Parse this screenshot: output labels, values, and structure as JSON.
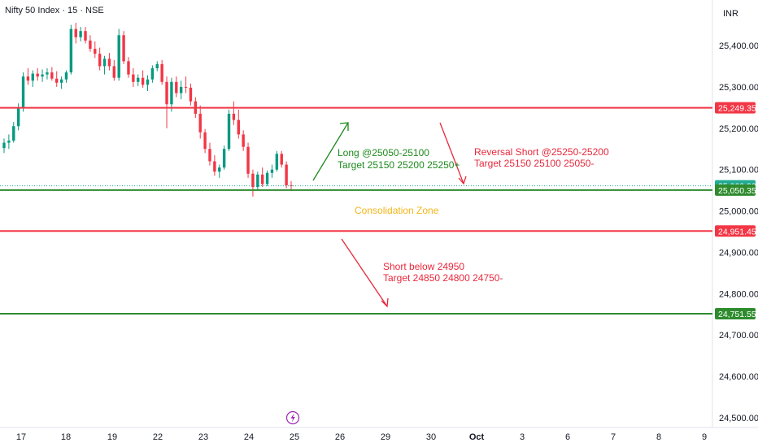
{
  "header": {
    "symbol_title": "Nifty 50 Index · 15 · NSE",
    "currency": "INR"
  },
  "chart_data": {
    "type": "candlestick",
    "title": "Nifty 50 Index · 15 · NSE",
    "ylim": [
      24480,
      25480
    ],
    "y_ticks": [
      {
        "value": 25400,
        "label": "25,400.00"
      },
      {
        "value": 25300,
        "label": "25,300.00"
      },
      {
        "value": 25200,
        "label": "25,200.00"
      },
      {
        "value": 25100,
        "label": "25,100.00"
      },
      {
        "value": 25000,
        "label": "25,000.00"
      },
      {
        "value": 24900,
        "label": "24,900.00"
      },
      {
        "value": 24800,
        "label": "24,800.00"
      },
      {
        "value": 24700,
        "label": "24,700.00"
      },
      {
        "value": 24600,
        "label": "24,600.00"
      },
      {
        "value": 24500,
        "label": "24,500.00"
      }
    ],
    "x_ticks": [
      "17",
      "18",
      "19",
      "22",
      "23",
      "24",
      "25",
      "26",
      "29",
      "30",
      "Oct",
      "3",
      "6",
      "7",
      "8",
      "9"
    ],
    "candles": [
      [
        25152,
        25175,
        25140,
        25165
      ],
      [
        25165,
        25185,
        25150,
        25170
      ],
      [
        25170,
        25215,
        25165,
        25205
      ],
      [
        25205,
        25260,
        25195,
        25248
      ],
      [
        25248,
        25335,
        25240,
        25325
      ],
      [
        25325,
        25345,
        25305,
        25315
      ],
      [
        25315,
        25340,
        25300,
        25332
      ],
      [
        25332,
        25345,
        25315,
        25325
      ],
      [
        25325,
        25342,
        25312,
        25330
      ],
      [
        25330,
        25345,
        25318,
        25335
      ],
      [
        25335,
        25348,
        25315,
        25320
      ],
      [
        25320,
        25338,
        25300,
        25310
      ],
      [
        25310,
        25325,
        25295,
        25318
      ],
      [
        25318,
        25340,
        25310,
        25335
      ],
      [
        25335,
        25450,
        25330,
        25440
      ],
      [
        25440,
        25455,
        25405,
        25420
      ],
      [
        25420,
        25445,
        25410,
        25435
      ],
      [
        25435,
        25445,
        25405,
        25412
      ],
      [
        25412,
        25425,
        25385,
        25392
      ],
      [
        25392,
        25410,
        25370,
        25380
      ],
      [
        25380,
        25395,
        25340,
        25350
      ],
      [
        25350,
        25375,
        25330,
        25368
      ],
      [
        25368,
        25382,
        25340,
        25350
      ],
      [
        25350,
        25365,
        25315,
        25322
      ],
      [
        25322,
        25440,
        25315,
        25425
      ],
      [
        25425,
        25435,
        25355,
        25362
      ],
      [
        25362,
        25372,
        25322,
        25330
      ],
      [
        25330,
        25345,
        25300,
        25312
      ],
      [
        25312,
        25330,
        25302,
        25322
      ],
      [
        25322,
        25340,
        25298,
        25305
      ],
      [
        25305,
        25328,
        25290,
        25318
      ],
      [
        25318,
        25352,
        25310,
        25345
      ],
      [
        25345,
        25362,
        25338,
        25355
      ],
      [
        25355,
        25365,
        25305,
        25312
      ],
      [
        25312,
        25325,
        25200,
        25258
      ],
      [
        25258,
        25322,
        25240,
        25312
      ],
      [
        25312,
        25325,
        25275,
        25285
      ],
      [
        25285,
        25315,
        25270,
        25300
      ],
      [
        25300,
        25325,
        25285,
        25298
      ],
      [
        25298,
        25308,
        25255,
        25265
      ],
      [
        25265,
        25275,
        25225,
        25235
      ],
      [
        25235,
        25255,
        25175,
        25190
      ],
      [
        25190,
        25198,
        25140,
        25150
      ],
      [
        25150,
        25165,
        25110,
        25120
      ],
      [
        25120,
        25135,
        25085,
        25095
      ],
      [
        25095,
        25112,
        25080,
        25105
      ],
      [
        25105,
        25158,
        25100,
        25150
      ],
      [
        25150,
        25245,
        25145,
        25235
      ],
      [
        25235,
        25265,
        25208,
        25220
      ],
      [
        25220,
        25245,
        25175,
        25185
      ],
      [
        25185,
        25195,
        25145,
        25155
      ],
      [
        25155,
        25165,
        25080,
        25090
      ],
      [
        25090,
        25100,
        25035,
        25058
      ],
      [
        25058,
        25095,
        25050,
        25088
      ],
      [
        25088,
        25105,
        25058,
        25065
      ],
      [
        25065,
        25098,
        25060,
        25092
      ],
      [
        25092,
        25112,
        25080,
        25100
      ],
      [
        25100,
        25145,
        25095,
        25138
      ],
      [
        25138,
        25145,
        25105,
        25112
      ],
      [
        25112,
        25120,
        25055,
        25062
      ],
      [
        25062,
        25072,
        25048,
        25060
      ]
    ],
    "levels": [
      {
        "value": 25249.35,
        "label": "25,249.35",
        "color": "#f23645"
      },
      {
        "value": 25060.9,
        "label": "25,060.90",
        "color": "#22ab94"
      },
      {
        "value": 25050.35,
        "label": "25,050.35",
        "color": "#2e8b2e"
      },
      {
        "value": 24951.45,
        "label": "24,951.45",
        "color": "#f23645"
      },
      {
        "value": 24751.55,
        "label": "24,751.55",
        "color": "#2e8b2e"
      }
    ],
    "annotations": {
      "long": {
        "line1": "Long @25050-25100",
        "line2": "Target 25150 25200 25250+",
        "color": "#1e8a1e"
      },
      "reversal": {
        "line1": "Reversal Short @25250-25200",
        "line2": "Target 25150 25100 25050-",
        "color": "#e8283c"
      },
      "short": {
        "line1": "Short below 24950",
        "line2": "Target 24850 24800 24750-",
        "color": "#e8283c"
      },
      "zone": {
        "text": "Consolidation Zone",
        "color": "#f2b61a"
      }
    },
    "colors": {
      "up": "#089981",
      "down": "#f23645",
      "grid": "#f0f3fa"
    }
  }
}
